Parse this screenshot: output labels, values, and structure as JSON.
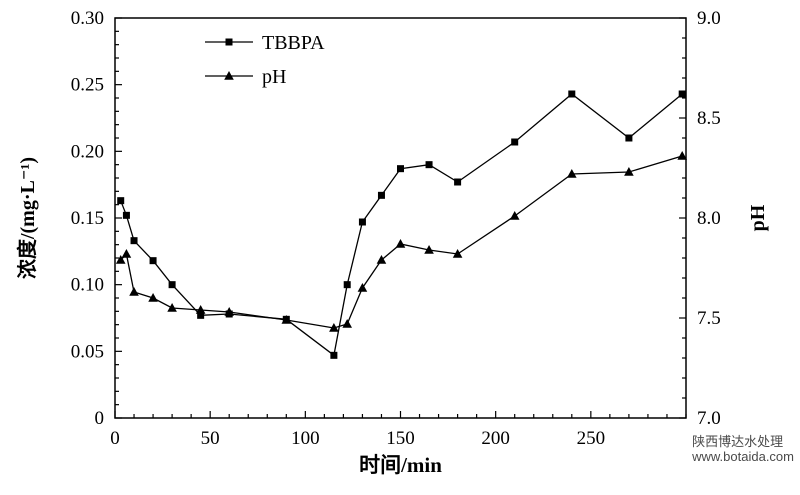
{
  "watermark": {
    "line1": "陕西博达水处理",
    "line2": "www.botaida.com"
  },
  "chart_data": {
    "type": "line",
    "title": "",
    "xlabel": "时间/min",
    "ylabel_left": "浓度/(mg·L⁻¹)",
    "ylabel_right": "pH",
    "xlim": [
      0,
      300
    ],
    "ylim_left": [
      0,
      0.3
    ],
    "ylim_right": [
      7.0,
      9.0
    ],
    "x_major_ticks": [
      0,
      50,
      100,
      150,
      200,
      250
    ],
    "x_tick_labels": [
      "0",
      "50",
      "100",
      "150",
      "200",
      "250"
    ],
    "x_minor_step": 10,
    "y_left_ticks": [
      0,
      0.05,
      0.1,
      0.15,
      0.2,
      0.25,
      0.3
    ],
    "y_left_tick_labels": [
      "0",
      "0.05",
      "0.10",
      "0.15",
      "0.20",
      "0.25",
      "0.30"
    ],
    "y_left_minor_step": 0.01,
    "y_right_ticks": [
      7.0,
      7.5,
      8.0,
      8.5,
      9.0
    ],
    "y_right_tick_labels": [
      "7.0",
      "7.5",
      "8.0",
      "8.5",
      "9.0"
    ],
    "y_right_minor_step": 0.1,
    "grid": false,
    "legend_position": "top-left-inside",
    "line_color": "#000000",
    "legend": [
      {
        "label": "TBBPA",
        "marker": "square"
      },
      {
        "label": "pH",
        "marker": "triangle"
      }
    ],
    "series": [
      {
        "name": "TBBPA",
        "axis": "left",
        "marker": "square",
        "x": [
          3,
          6,
          10,
          20,
          30,
          45,
          60,
          90,
          115,
          122,
          130,
          140,
          150,
          165,
          180,
          210,
          240,
          270,
          298
        ],
        "y": [
          0.163,
          0.152,
          0.133,
          0.118,
          0.1,
          0.077,
          0.078,
          0.074,
          0.047,
          0.1,
          0.147,
          0.167,
          0.187,
          0.19,
          0.177,
          0.207,
          0.243,
          0.21,
          0.243
        ]
      },
      {
        "name": "pH",
        "axis": "right",
        "marker": "triangle",
        "x": [
          3,
          6,
          10,
          20,
          30,
          45,
          60,
          90,
          115,
          122,
          130,
          140,
          150,
          165,
          180,
          210,
          240,
          270,
          298
        ],
        "y": [
          7.79,
          7.82,
          7.63,
          7.6,
          7.55,
          7.54,
          7.53,
          7.49,
          7.45,
          7.47,
          7.65,
          7.79,
          7.87,
          7.84,
          7.82,
          8.01,
          8.22,
          8.23,
          8.31
        ]
      }
    ]
  }
}
